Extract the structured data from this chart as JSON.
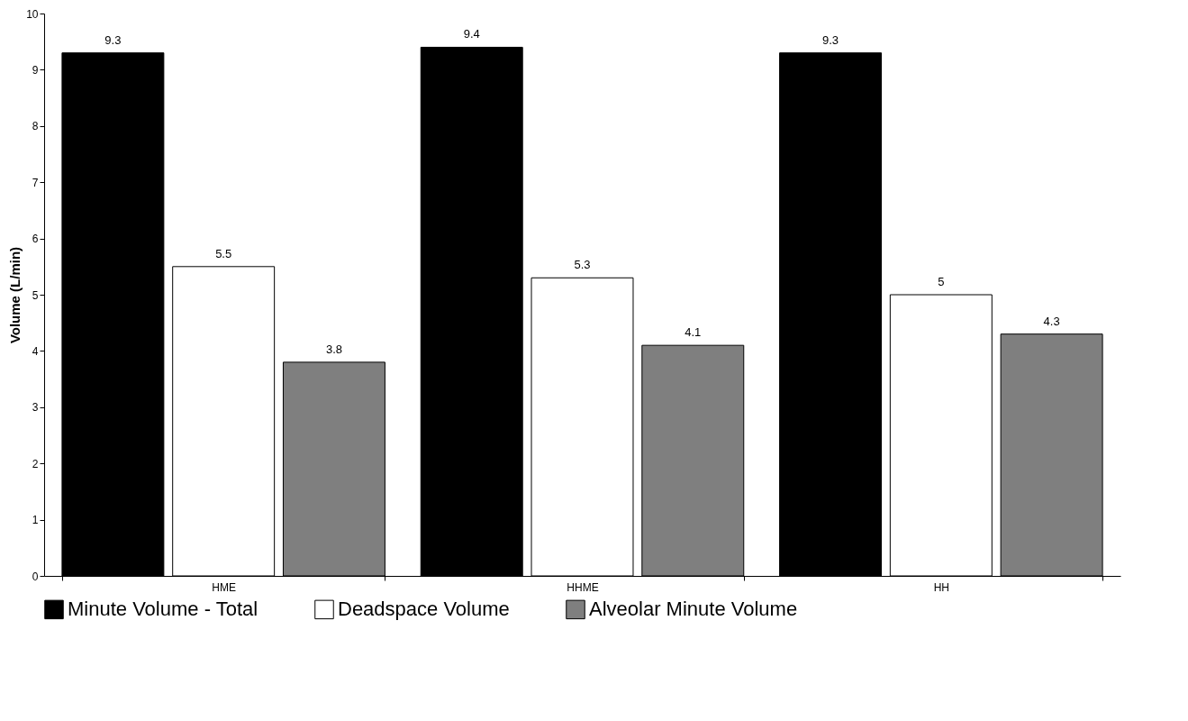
{
  "chart_data": {
    "type": "bar",
    "ylabel": "Volume (L/min)",
    "categories": [
      "HME",
      "HHME",
      "HH"
    ],
    "series": [
      {
        "name": "Minute Volume - Total",
        "color": "#000000",
        "values": [
          9.3,
          9.4,
          9.3
        ]
      },
      {
        "name": "Deadspace Volume",
        "color": "#ffffff",
        "values": [
          5.5,
          5.3,
          5
        ]
      },
      {
        "name": "Alveolar Minute Volume",
        "color": "#7f7f7f",
        "values": [
          3.8,
          4.1,
          4.3
        ]
      }
    ],
    "ylim": [
      0,
      10
    ],
    "yticks": [
      0,
      1,
      2,
      3,
      4,
      5,
      6,
      7,
      8,
      9,
      10
    ],
    "grid": false,
    "legend": "bottom",
    "data_labels": true
  }
}
